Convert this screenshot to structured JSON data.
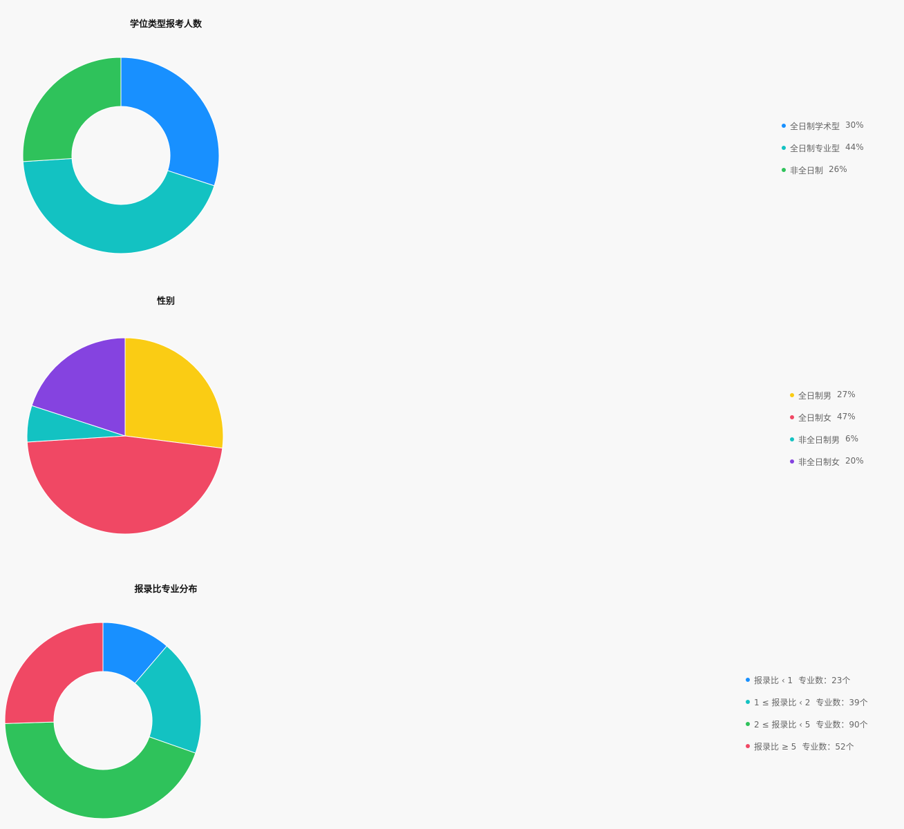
{
  "chart_data": [
    {
      "type": "pie",
      "variant": "donut",
      "title": "学位类型报考人数",
      "legend_position": "right",
      "slices": [
        {
          "label": "全日制学术型",
          "value": 30,
          "display": "30%",
          "color": "#1890ff"
        },
        {
          "label": "全日制专业型",
          "value": 44,
          "display": "44%",
          "color": "#13c2c2"
        },
        {
          "label": "非全日制",
          "value": 26,
          "display": "26%",
          "color": "#2fc25b"
        }
      ]
    },
    {
      "type": "pie",
      "variant": "pie",
      "title": "性别",
      "legend_position": "right",
      "slices": [
        {
          "label": "全日制男",
          "value": 27,
          "display": "27%",
          "color": "#facc14"
        },
        {
          "label": "全日制女",
          "value": 47,
          "display": "47%",
          "color": "#f04864"
        },
        {
          "label": "非全日制男",
          "value": 6,
          "display": "6%",
          "color": "#13c2c2"
        },
        {
          "label": "非全日制女",
          "value": 20,
          "display": "20%",
          "color": "#8543e0"
        }
      ]
    },
    {
      "type": "pie",
      "variant": "donut",
      "title": "报录比专业分布",
      "legend_position": "right",
      "slices": [
        {
          "label": "报录比 ‹ 1",
          "value": 23,
          "display": "专业数：23个",
          "color": "#1890ff"
        },
        {
          "label": "1 ≤ 报录比 ‹ 2",
          "value": 39,
          "display": "专业数：39个",
          "color": "#13c2c2"
        },
        {
          "label": "2 ≤ 报录比 ‹ 5",
          "value": 90,
          "display": "专业数：90个",
          "color": "#2fc25b"
        },
        {
          "label": "报录比 ≥ 5",
          "value": 52,
          "display": "专业数：52个",
          "color": "#f04864"
        }
      ]
    }
  ]
}
